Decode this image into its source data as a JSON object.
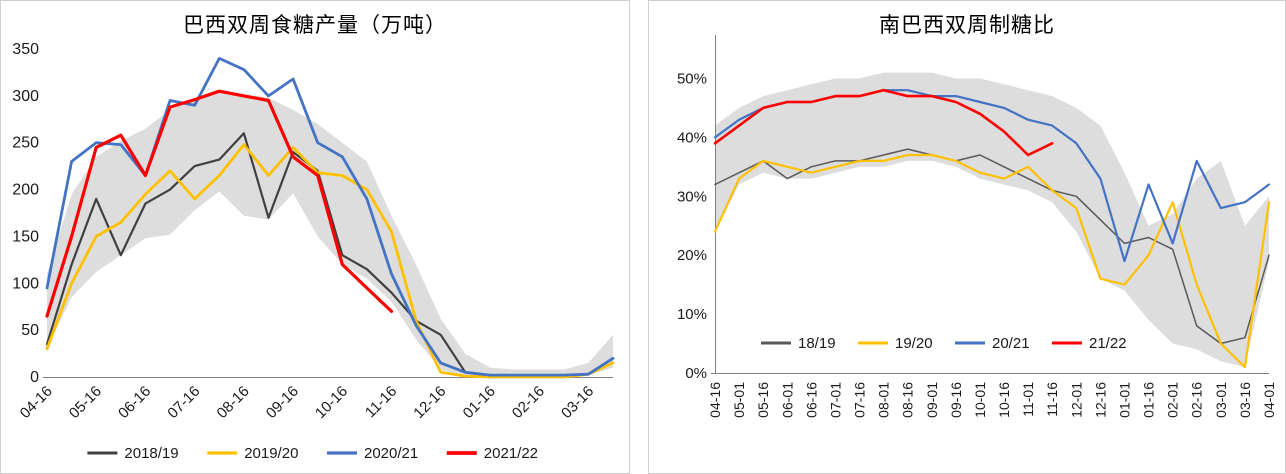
{
  "page": {
    "background": "#ffffff",
    "panel_border": "#cfcfcf",
    "band_color": "#d9d9d9"
  },
  "chart_data": [
    {
      "type": "line",
      "title": "巴西双周食糖产量（万吨）",
      "x": [
        "04-16",
        "05-01",
        "05-16",
        "06-01",
        "06-16",
        "07-01",
        "07-16",
        "08-01",
        "08-16",
        "09-01",
        "09-16",
        "10-01",
        "10-16",
        "11-01",
        "11-16",
        "12-01",
        "12-16",
        "01-01",
        "01-16",
        "02-01",
        "02-16",
        "03-01",
        "03-16",
        "04-01"
      ],
      "x_tick_step": 2,
      "x_label_rotation": -45,
      "ylim": [
        0,
        350
      ],
      "yticks": [
        0,
        50,
        100,
        150,
        200,
        250,
        300,
        350
      ],
      "y_suffix": "",
      "grid": false,
      "legend_position": "bottom",
      "band": {
        "color": "#d9d9d9",
        "upper": [
          110,
          195,
          235,
          252,
          265,
          285,
          298,
          305,
          302,
          298,
          285,
          270,
          250,
          230,
          172,
          120,
          62,
          25,
          10,
          8,
          8,
          8,
          15,
          45
        ],
        "lower": [
          30,
          85,
          112,
          130,
          148,
          152,
          178,
          198,
          172,
          168,
          196,
          150,
          120,
          105,
          80,
          40,
          8,
          0,
          0,
          0,
          0,
          0,
          2,
          10
        ]
      },
      "series": [
        {
          "name": "2018/19",
          "color": "#404040",
          "width": 2.2,
          "values": [
            35,
            120,
            190,
            130,
            185,
            200,
            225,
            232,
            260,
            170,
            240,
            220,
            130,
            115,
            90,
            60,
            45,
            5,
            1,
            1,
            1,
            1,
            3,
            20
          ]
        },
        {
          "name": "2019/20",
          "color": "#FFC000",
          "width": 2.8,
          "values": [
            30,
            100,
            150,
            165,
            195,
            220,
            190,
            215,
            248,
            215,
            245,
            218,
            215,
            200,
            155,
            60,
            5,
            1,
            0,
            0,
            0,
            0,
            3,
            15
          ]
        },
        {
          "name": "2020/21",
          "color": "#4472C4",
          "width": 2.8,
          "values": [
            95,
            230,
            250,
            248,
            215,
            295,
            290,
            340,
            328,
            300,
            318,
            250,
            235,
            190,
            110,
            55,
            15,
            5,
            2,
            2,
            2,
            2,
            3,
            20
          ]
        },
        {
          "name": "2021/22",
          "color": "#FF0000",
          "width": 3.2,
          "values": [
            65,
            150,
            245,
            258,
            215,
            288,
            296,
            305,
            300,
            295,
            235,
            215,
            120,
            95,
            70
          ]
        }
      ]
    },
    {
      "type": "line",
      "title": "南巴西双周制糖比",
      "x": [
        "04-16",
        "05-01",
        "05-16",
        "06-01",
        "06-16",
        "07-01",
        "07-16",
        "08-01",
        "08-16",
        "09-01",
        "09-16",
        "10-01",
        "10-16",
        "11-01",
        "11-16",
        "12-01",
        "12-16",
        "01-01",
        "01-16",
        "02-01",
        "02-16",
        "03-01",
        "03-16",
        "04-01"
      ],
      "x_tick_step": 1,
      "x_label_rotation": -90,
      "ylim": [
        0,
        55
      ],
      "yticks": [
        0,
        10,
        20,
        30,
        40,
        50
      ],
      "y_suffix": "%",
      "grid": false,
      "legend_position": "inside-bottom",
      "band": {
        "color": "#d9d9d9",
        "upper": [
          42,
          45,
          47,
          48,
          49,
          50,
          50,
          51,
          51,
          51,
          50,
          50,
          49,
          48,
          47,
          45,
          42,
          34,
          25,
          27,
          33,
          36,
          25,
          30
        ],
        "lower": [
          24,
          32,
          34,
          33,
          33,
          34,
          35,
          35,
          36,
          36,
          35,
          33,
          32,
          31,
          29,
          24,
          16,
          14,
          9,
          5,
          4,
          2,
          1,
          19
        ]
      },
      "series": [
        {
          "name": "18/19",
          "color": "#595959",
          "width": 1.5,
          "values": [
            32,
            34,
            36,
            33,
            35,
            36,
            36,
            37,
            38,
            37,
            36,
            37,
            35,
            33,
            31,
            30,
            26,
            22,
            23,
            21,
            8,
            5,
            6,
            20
          ]
        },
        {
          "name": "19/20",
          "color": "#FFC000",
          "width": 2.2,
          "values": [
            24,
            33,
            36,
            35,
            34,
            35,
            36,
            36,
            37,
            37,
            36,
            34,
            33,
            35,
            31,
            28,
            16,
            15,
            20,
            29,
            15,
            5,
            1,
            29
          ]
        },
        {
          "name": "20/21",
          "color": "#4472C4",
          "width": 2.2,
          "values": [
            40,
            43,
            45,
            46,
            46,
            47,
            47,
            48,
            48,
            47,
            47,
            46,
            45,
            43,
            42,
            39,
            33,
            19,
            32,
            22,
            36,
            28,
            29,
            32
          ]
        },
        {
          "name": "21/22",
          "color": "#FF0000",
          "width": 2.6,
          "values": [
            39,
            42,
            45,
            46,
            46,
            47,
            47,
            48,
            47,
            47,
            46,
            44,
            41,
            37,
            39
          ]
        }
      ]
    }
  ]
}
